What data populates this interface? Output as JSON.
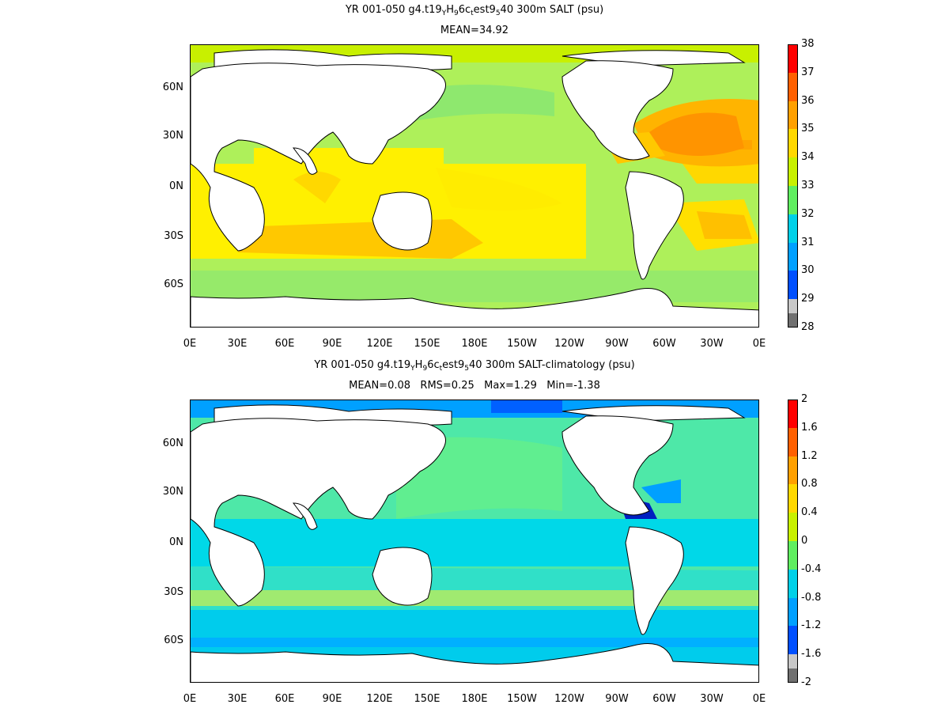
{
  "panels": [
    {
      "title": {
        "prefix": "YR 001-050 g4.t19",
        "s1": "Y",
        "m1": "H",
        "s2": "9",
        "m2": "6c",
        "s3": "t",
        "m3": "est9",
        "s4": "5",
        "suffix": "40 300m SALT (psu)"
      },
      "stats": "MEAN=34.92",
      "variable": "SALT",
      "units": "psu",
      "colorbar": {
        "labels": [
          "38",
          "37",
          "36",
          "35",
          "34",
          "33",
          "32",
          "31",
          "30",
          "29",
          "28"
        ],
        "colors": [
          "#ff0000",
          "#ff6000",
          "#ffa000",
          "#ffd800",
          "#c8f000",
          "#60ee60",
          "#00d0e8",
          "#00a0ff",
          "#0050ff",
          "#0000c0",
          "#c8c8c8",
          "#707070"
        ]
      }
    },
    {
      "title": {
        "prefix": "YR 001-050 g4.t19",
        "s1": "Y",
        "m1": "H",
        "s2": "9",
        "m2": "6c",
        "s3": "t",
        "m3": "est9",
        "s4": "5",
        "suffix": "40 300m SALT-climatology (psu)"
      },
      "stats": "MEAN=0.08   RMS=0.25   Max=1.29   Min=-1.38",
      "variable": "SALT-climatology",
      "units": "psu",
      "colorbar": {
        "labels": [
          "2",
          "1.6",
          "1.2",
          "0.8",
          "0.4",
          "0",
          "-0.4",
          "-0.8",
          "-1.2",
          "-1.6",
          "-2"
        ],
        "colors": [
          "#ff0000",
          "#ff6000",
          "#ffa000",
          "#ffd800",
          "#c8f000",
          "#60ee60",
          "#00d0e8",
          "#00a0ff",
          "#0050ff",
          "#0000c0",
          "#c8c8c8",
          "#707070"
        ]
      }
    }
  ],
  "x_axis": [
    "0E",
    "30E",
    "60E",
    "90E",
    "120E",
    "150E",
    "180E",
    "150W",
    "120W",
    "90W",
    "60W",
    "30W",
    "0E"
  ],
  "y_axis": [
    "60N",
    "30N",
    "0N",
    "30S",
    "60S"
  ],
  "map_colors": {
    "land": "#ffffff",
    "coast": "#000000"
  }
}
